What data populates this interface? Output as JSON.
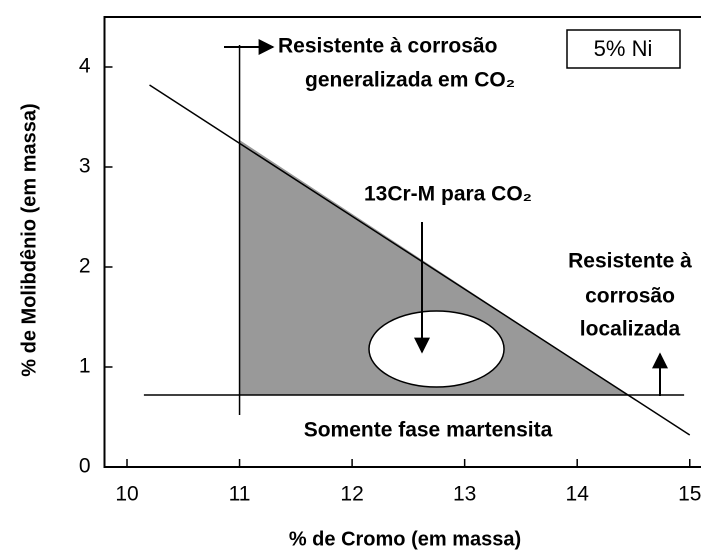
{
  "chart_data": {
    "type": "region",
    "x_label": "% de Cromo (em massa)",
    "y_label": "% de Molibdênio (em massa)",
    "xlim": [
      9.8,
      15.1
    ],
    "ylim": [
      0,
      4.5
    ],
    "xticks": [
      10,
      11,
      12,
      13,
      14,
      15
    ],
    "yticks": [
      0,
      1,
      2,
      3,
      4
    ],
    "region": {
      "color": "#999999",
      "x": [
        11,
        11,
        14.45
      ],
      "y": [
        3.27,
        0.72,
        0.72
      ]
    },
    "lines": [
      {
        "x": [
          10.2,
          15.0
        ],
        "y": [
          3.82,
          0.32
        ]
      },
      {
        "x": [
          11,
          11
        ],
        "y": [
          4.22,
          0.52
        ]
      },
      {
        "x": [
          10.15,
          14.95
        ],
        "y": [
          0.72,
          0.72
        ]
      }
    ],
    "ellipse": {
      "cx": 12.75,
      "cy": 1.18,
      "rx": 0.6,
      "ry": 0.38
    },
    "annotations": {
      "general": [
        "Resistente à corrosão",
        "generalizada em CO₂"
      ],
      "box": "5% Ni",
      "target": "13Cr-M para CO₂",
      "local": [
        "Resistente à",
        "corrosão",
        "localizada"
      ],
      "phase": "Somente fase martensita"
    }
  }
}
